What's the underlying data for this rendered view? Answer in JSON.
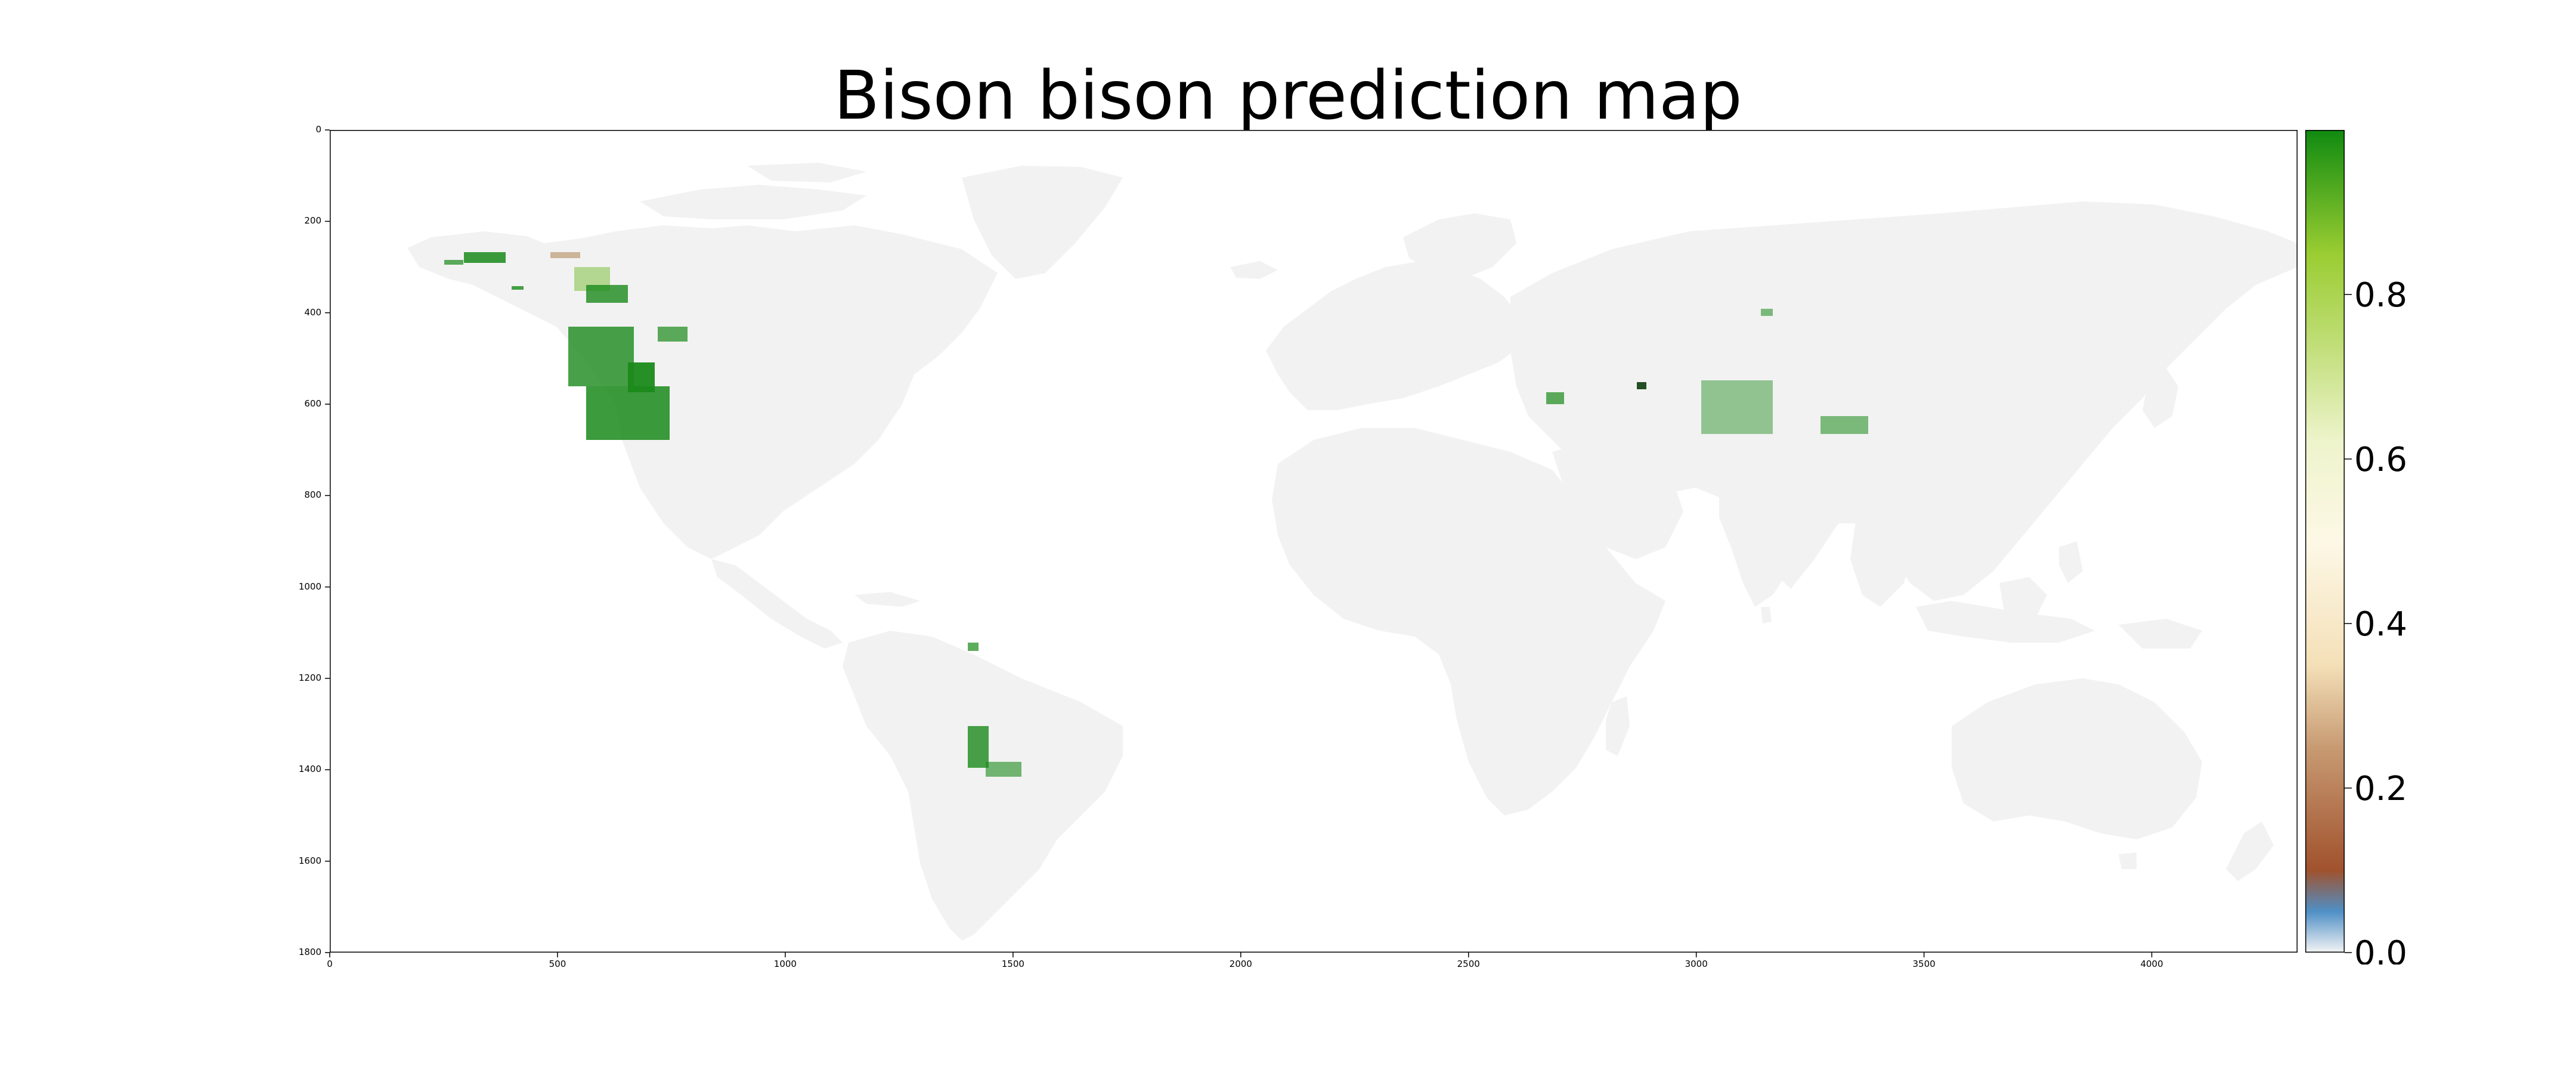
{
  "title": "Bison bison prediction map",
  "map": {
    "x_ticks": [
      "0",
      "500",
      "1000",
      "1500",
      "2000",
      "2500",
      "3000",
      "3500",
      "4000"
    ],
    "x_tick_values": [
      0,
      500,
      1000,
      1500,
      2000,
      2500,
      3000,
      3500,
      4000
    ],
    "y_ticks": [
      "0",
      "200",
      "400",
      "600",
      "800",
      "1000",
      "1200",
      "1400",
      "1600",
      "1800"
    ],
    "y_tick_values": [
      0,
      200,
      400,
      600,
      800,
      1000,
      1200,
      1400,
      1600,
      1800
    ],
    "x_range": [
      0,
      4320
    ],
    "y_range": [
      0,
      1800
    ],
    "land_color": "#f2f2f2",
    "background_color": "#ffffff",
    "prediction_color": "#1a8a1a"
  },
  "colorbar": {
    "ticks": [
      "0.0",
      "0.2",
      "0.4",
      "0.6",
      "0.8"
    ],
    "tick_values": [
      0.0,
      0.2,
      0.4,
      0.6,
      0.8
    ],
    "range": [
      0.0,
      1.0
    ],
    "colors": [
      "#f4f4f4",
      "#4f8fc6",
      "#a0522d",
      "#c89b73",
      "#f4e0b8",
      "#fdf8e6",
      "#eef4cc",
      "#bcdc70",
      "#9acd32",
      "#108a10"
    ]
  }
}
